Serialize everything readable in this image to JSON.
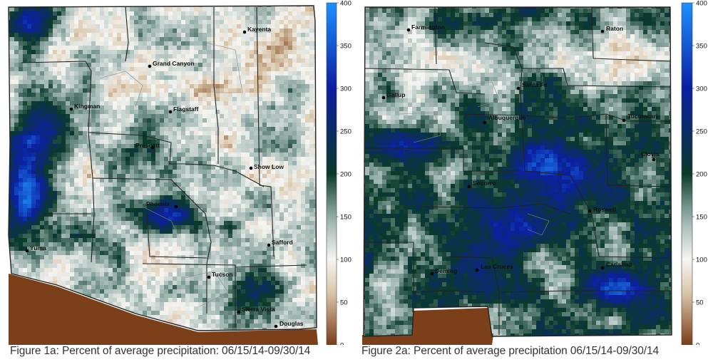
{
  "colorbar": {
    "ticks": [
      "400",
      "350",
      "300",
      "250",
      "200",
      "150",
      "100",
      "50",
      "0"
    ],
    "tick_values": [
      400,
      350,
      300,
      250,
      200,
      150,
      100,
      50,
      0
    ],
    "colors": [
      "#1e90ff",
      "#0b1fa0",
      "#0a3a2a",
      "#f5f5f2",
      "#d8c4a8",
      "#7a3d17"
    ]
  },
  "panels": [
    {
      "id": "az",
      "caption": "Figure 1a: Percent of average precipitation: 06/15/14-09/30/14",
      "cities": [
        "Kayenta",
        "Grand Canyon",
        "Kingman",
        "Flagstaff",
        "Prescott",
        "Show Low",
        "Phoenix",
        "Safford",
        "Yuma",
        "Tucson",
        "Sierra Vista",
        "Douglas"
      ]
    },
    {
      "id": "nm",
      "caption": "Figure 2a: Percent of average precipitation 06/15/14-09/30/14",
      "cities": [
        "Farmington",
        "Raton",
        "Gallup",
        "Santa Fe",
        "Albuquerque",
        "Tucumcari",
        "Clovis",
        "Socorro",
        "Roswell",
        "Carlsbad",
        "Deming",
        "Las Cruces"
      ]
    }
  ]
}
